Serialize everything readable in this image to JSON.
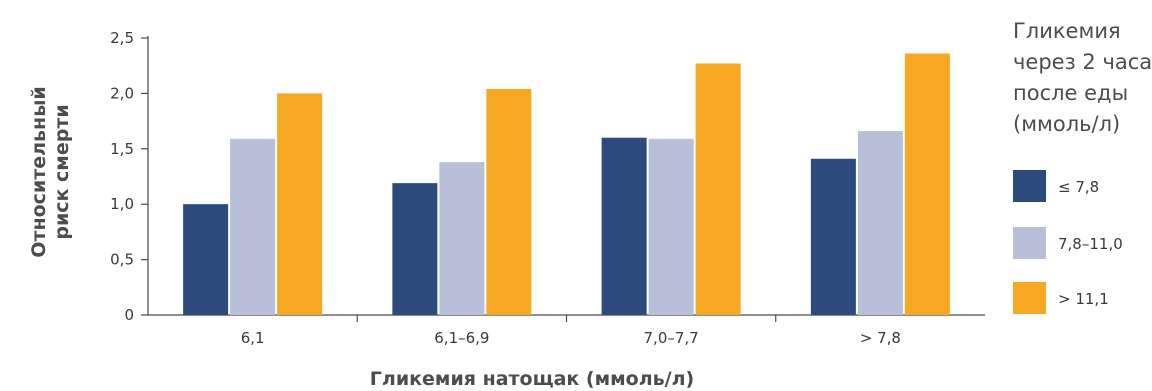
{
  "chart_data": {
    "type": "bar",
    "categories": [
      "6,1",
      "6,1–6,9",
      "7,0–7,7",
      "> 7,8"
    ],
    "series": [
      {
        "name": "≤ 7,8",
        "values": [
          1.0,
          1.19,
          1.6,
          1.41
        ],
        "color": "#2c4a7c"
      },
      {
        "name": "7,8–11,0",
        "values": [
          1.59,
          1.38,
          1.59,
          1.66
        ],
        "color": "#b8bfd9"
      },
      {
        "name": "> 11,1",
        "values": [
          2.0,
          2.04,
          2.27,
          2.36
        ],
        "color": "#f7a823"
      }
    ],
    "title": "",
    "xlabel": "Гликемия натощак (ммоль/л)",
    "ylabel_lines": [
      "Относительный",
      "риск смерти"
    ],
    "ylim": [
      0,
      2.5
    ],
    "yticks": [
      {
        "value": 0,
        "label": "0"
      },
      {
        "value": 0.5,
        "label": "0,5"
      },
      {
        "value": 1.0,
        "label": "1,0"
      },
      {
        "value": 1.5,
        "label": "1,5"
      },
      {
        "value": 2.0,
        "label": "2,0"
      },
      {
        "value": 2.5,
        "label": "2,5"
      }
    ],
    "grid": false,
    "legend": {
      "position": "right",
      "title_lines": [
        "Гликемия",
        "через 2 часа",
        "после еды",
        "(ммоль/л)"
      ]
    }
  }
}
